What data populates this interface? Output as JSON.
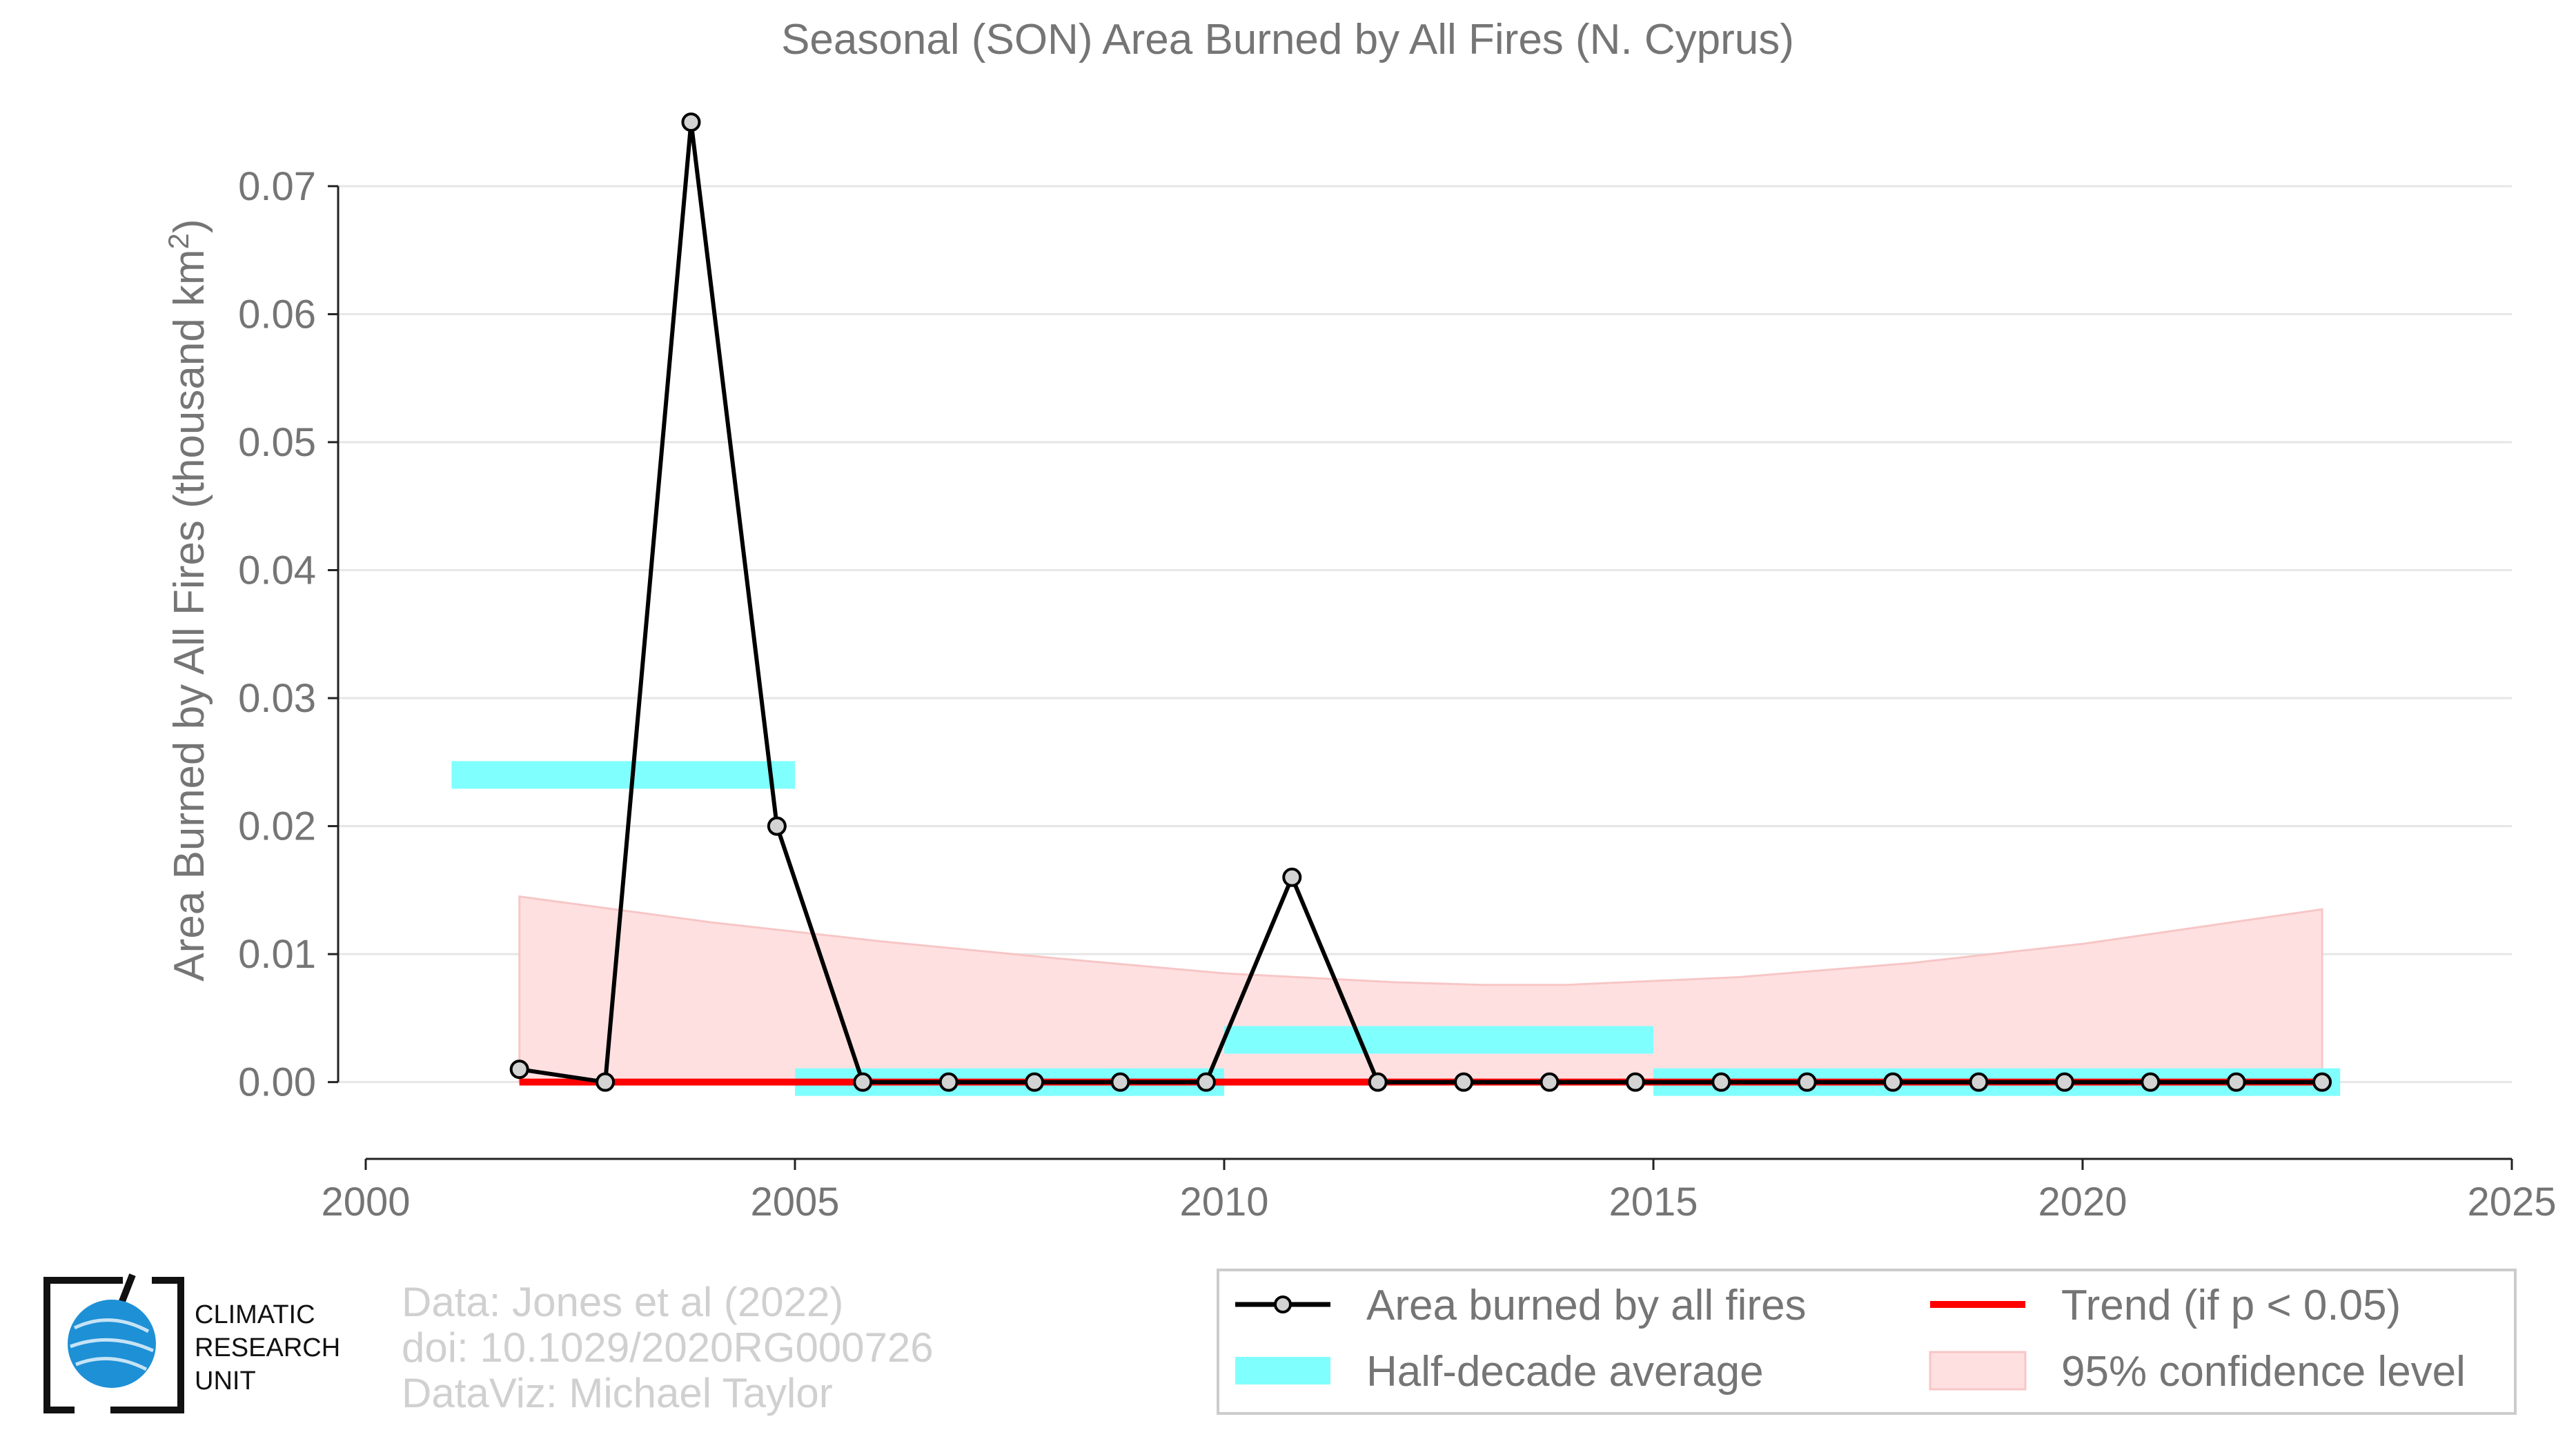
{
  "colors": {
    "series_line": "#000000",
    "marker_fill": "#d3d3d3",
    "half_decade": "#80ffff",
    "trend": "#ff0000",
    "confidence_fill": "#ffe0e0",
    "confidence_edge": "#f7c6c6",
    "text": "#757575",
    "credit_text": "#d0d0d0",
    "logo_globe": "#1e90d6"
  },
  "chart_data": {
    "type": "line",
    "title": "Seasonal (SON) Area Burned by All Fires (N. Cyprus)",
    "ylabel_main": "Area Burned by All Fires (thousand km",
    "ylabel_sup": "2",
    "ylabel_end": ")",
    "xlabel": "",
    "xlim": [
      2000,
      2025
    ],
    "ylim": [
      -0.006,
      0.077
    ],
    "xticks": [
      2000,
      2005,
      2010,
      2015,
      2020,
      2025
    ],
    "yticks": [
      0.0,
      0.01,
      0.02,
      0.03,
      0.04,
      0.05,
      0.06,
      0.07
    ],
    "ytick_labels": [
      "0.00",
      "0.01",
      "0.02",
      "0.03",
      "0.04",
      "0.05",
      "0.06",
      "0.07"
    ],
    "grid": "horizontal",
    "legend_position": "bottom-right",
    "series": [
      {
        "name": "Area burned by all fires",
        "kind": "line-markers",
        "x": [
          2001.79,
          2002.79,
          2003.79,
          2004.79,
          2005.79,
          2006.79,
          2007.79,
          2008.79,
          2009.79,
          2010.79,
          2011.79,
          2012.79,
          2013.79,
          2014.79,
          2015.79,
          2016.79,
          2017.79,
          2018.79,
          2019.79,
          2020.79,
          2021.79,
          2022.79
        ],
        "y": [
          0.001,
          0.0,
          0.075,
          0.02,
          0.0,
          0.0,
          0.0,
          0.0,
          0.0,
          0.016,
          0.0,
          0.0,
          0.0,
          0.0,
          0.0,
          0.0,
          0.0,
          0.0,
          0.0,
          0.0,
          0.0,
          0.0
        ]
      },
      {
        "name": "Half-decade average",
        "kind": "segments",
        "segments": [
          {
            "x0": 2001.0,
            "x1": 2005.0,
            "y": 0.024
          },
          {
            "x0": 2005.0,
            "x1": 2010.0,
            "y": 0.0
          },
          {
            "x0": 2010.0,
            "x1": 2015.0,
            "y": 0.0033
          },
          {
            "x0": 2015.0,
            "x1": 2023.0,
            "y": 0.0
          }
        ]
      },
      {
        "name": "Trend (if p < 0.05)",
        "kind": "line",
        "x": [
          2001.79,
          2022.79
        ],
        "y": [
          0.0,
          0.0
        ]
      },
      {
        "name": "95% confidence level",
        "kind": "band",
        "x": [
          2001.79,
          2004,
          2006,
          2008,
          2010,
          2012,
          2013,
          2014,
          2016,
          2018,
          2020,
          2022.79
        ],
        "upper": [
          0.0145,
          0.0125,
          0.011,
          0.0097,
          0.0085,
          0.0078,
          0.0076,
          0.0076,
          0.0082,
          0.0093,
          0.0108,
          0.0135
        ],
        "lower": [
          0.0,
          0.0,
          0.0,
          0.0,
          0.0,
          0.0,
          0.0,
          0.0,
          0.0,
          0.0,
          0.0,
          0.0
        ]
      }
    ]
  },
  "legend": {
    "items": [
      {
        "label": "Area burned by all fires",
        "symbol": "line-marker"
      },
      {
        "label": "Half-decade average",
        "symbol": "cyan-bar"
      },
      {
        "label": "Trend (if p < 0.05)",
        "symbol": "red-line"
      },
      {
        "label": "95% confidence level",
        "symbol": "pink-patch"
      }
    ]
  },
  "credits": {
    "line1": "Data: Jones et al (2022)",
    "line2": "doi: 10.1029/2020RG000726",
    "line3": "DataViz: Michael Taylor"
  },
  "logo": {
    "line1": "CLIMATIC",
    "line2": "RESEARCH",
    "line3": "UNIT",
    "icon": "globe-icon"
  }
}
